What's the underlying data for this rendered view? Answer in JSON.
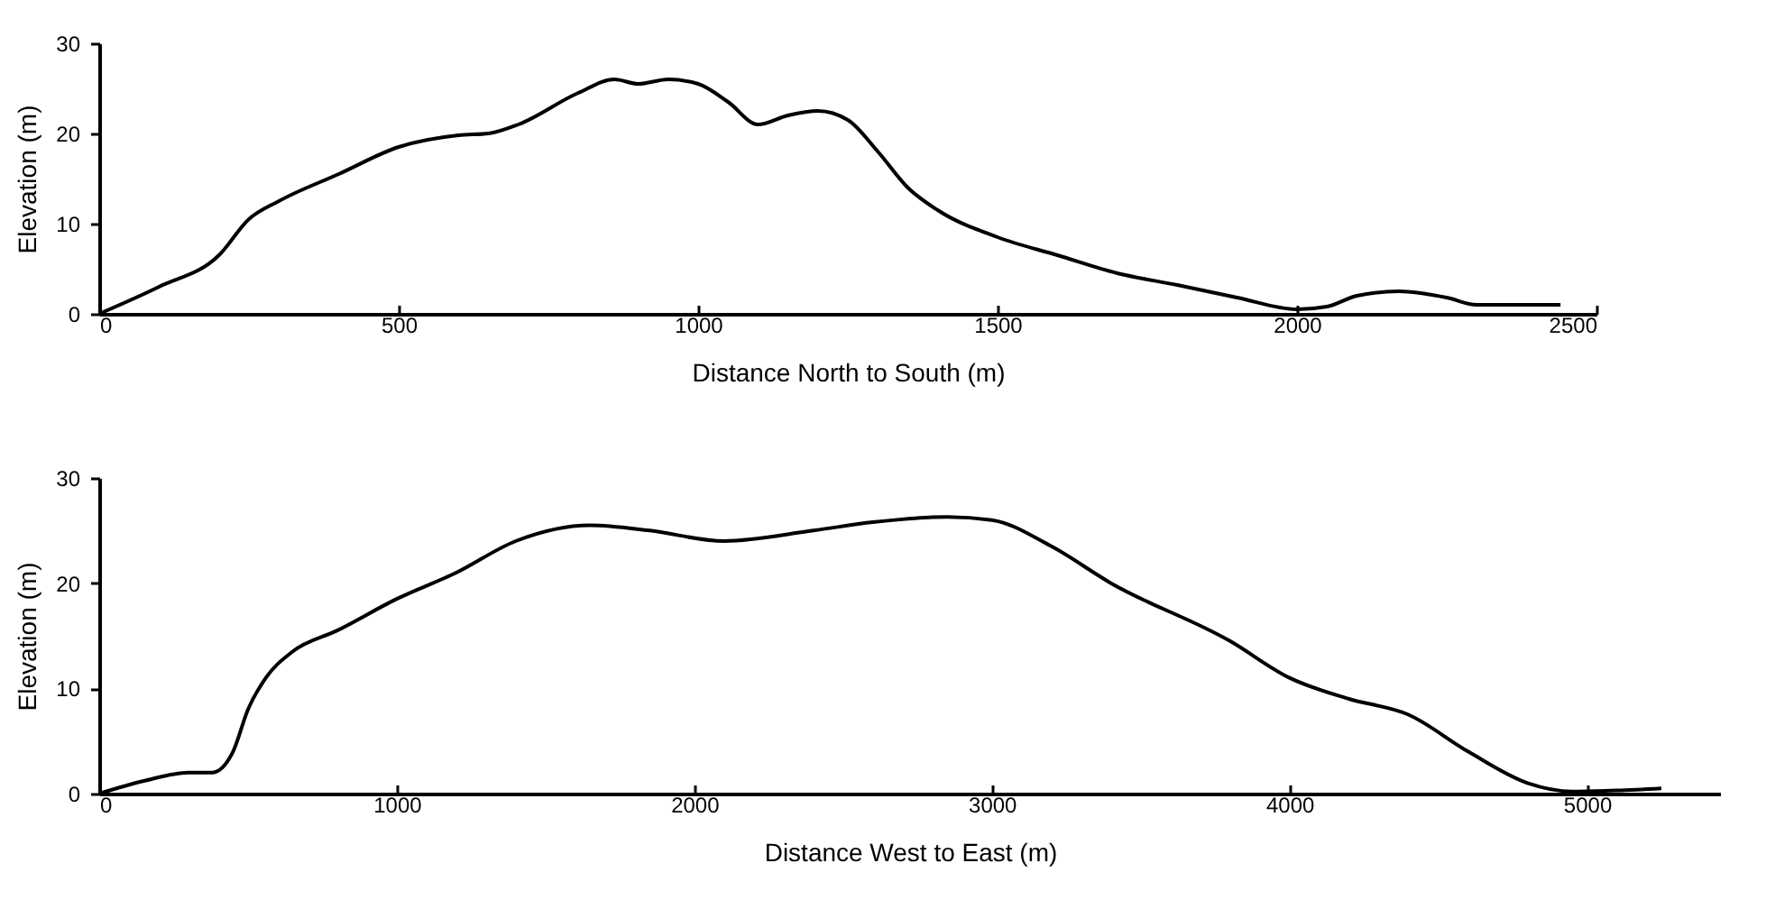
{
  "chart_data": [
    {
      "type": "line",
      "xlabel": "Distance North to South (m)",
      "ylabel": "Elevation (m)",
      "xlim": [
        0,
        2500
      ],
      "xticks": [
        0,
        500,
        1000,
        1500,
        2000,
        2500
      ],
      "ylim": [
        0,
        30
      ],
      "yticks": [
        0,
        10,
        20,
        30
      ],
      "grid": false,
      "marker": "none",
      "line_style": "solid",
      "series": [
        {
          "color": "#000000",
          "x": [
            0,
            100,
            200,
            250,
            300,
            400,
            500,
            600,
            650,
            700,
            800,
            860,
            900,
            950,
            1000,
            1050,
            1100,
            1150,
            1200,
            1250,
            1300,
            1350,
            1400,
            1500,
            1600,
            1700,
            1800,
            1900,
            2000,
            2050,
            2100,
            2170,
            2250,
            2300,
            2440
          ],
          "values": [
            0,
            3,
            6.5,
            10.5,
            12.5,
            15.5,
            18.5,
            19.8,
            20,
            21,
            24.5,
            26,
            25.5,
            26,
            25.5,
            23.5,
            21,
            22,
            22.5,
            21.5,
            18,
            14,
            11.5,
            8.5,
            6.5,
            4.5,
            3.2,
            1.8,
            0.5,
            0.8,
            2,
            2.5,
            1.8,
            1,
            1
          ]
        }
      ]
    },
    {
      "type": "line",
      "xlabel": "Distance West to East (m)",
      "ylabel": "Elevation (m)",
      "xlim": [
        0,
        5450
      ],
      "xticks": [
        0,
        1000,
        2000,
        3000,
        4000,
        5000
      ],
      "ylim": [
        0,
        30
      ],
      "yticks": [
        0,
        10,
        20,
        30
      ],
      "grid": false,
      "marker": "none",
      "line_style": "solid",
      "series": [
        {
          "color": "#000000",
          "x": [
            0,
            150,
            300,
            380,
            450,
            500,
            560,
            650,
            800,
            1000,
            1200,
            1400,
            1650,
            1850,
            2100,
            2400,
            2600,
            2850,
            3000,
            3200,
            3400,
            3800,
            4000,
            4200,
            4400,
            4600,
            4800,
            4950,
            5100,
            5250
          ],
          "values": [
            0,
            1.2,
            2,
            2,
            4,
            8,
            11,
            13.5,
            15.5,
            18.5,
            21,
            24,
            25.5,
            25,
            24,
            25,
            25.8,
            26.3,
            26,
            23.5,
            20,
            14.5,
            11,
            9,
            7.5,
            4,
            1,
            0.2,
            0.3,
            0.5
          ]
        }
      ]
    }
  ]
}
